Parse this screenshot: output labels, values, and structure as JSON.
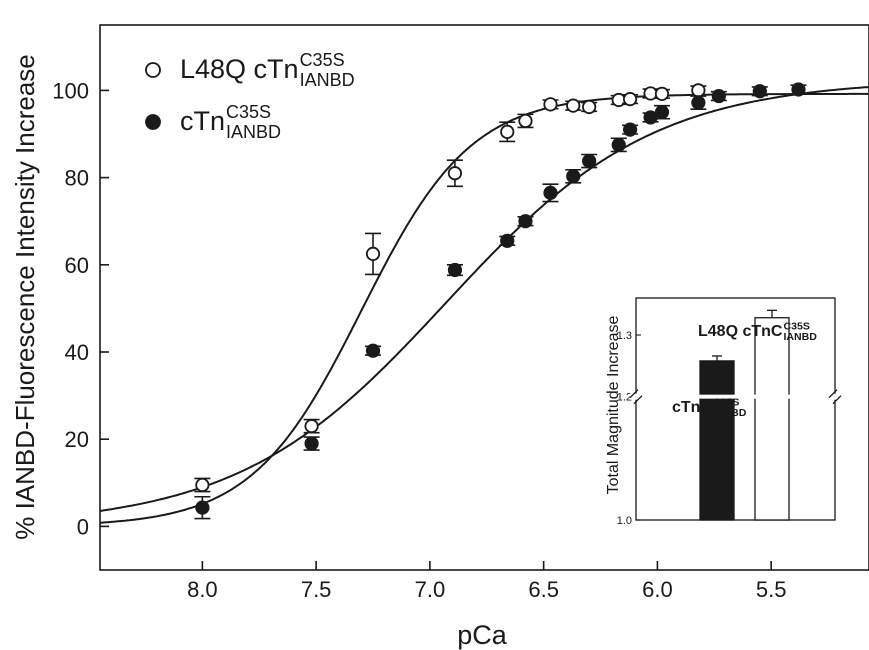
{
  "chart_data": {
    "type": "scatter",
    "xlabel": "pCa",
    "ylabel": "% IANBD-Fluorescence Intensity Increase",
    "xlim": [
      8.45,
      5.07
    ],
    "ylim": [
      -10,
      115
    ],
    "x_reversed": true,
    "x_ticks": [
      {
        "value": 8.0,
        "label": "8.0"
      },
      {
        "value": 7.5,
        "label": "7.5"
      },
      {
        "value": 7.0,
        "label": "7.0"
      },
      {
        "value": 6.5,
        "label": "6.5"
      },
      {
        "value": 6.0,
        "label": "6.0"
      },
      {
        "value": 5.5,
        "label": "5.5"
      }
    ],
    "y_ticks": [
      {
        "value": 0,
        "label": "0"
      },
      {
        "value": 20,
        "label": "20"
      },
      {
        "value": 40,
        "label": "40"
      },
      {
        "value": 60,
        "label": "60"
      },
      {
        "value": 80,
        "label": "80"
      },
      {
        "value": 100,
        "label": "100"
      }
    ],
    "legend_position": "top-left",
    "series": [
      {
        "name_main": "L48Q cTn",
        "name_sup": "C35S",
        "name_sub": "IANBD",
        "marker": "open-circle",
        "fit": {
          "top": 99.2,
          "pCa50": 7.3,
          "nH": 1.8
        },
        "x": [
          8.0,
          7.52,
          7.25,
          6.89,
          6.66,
          6.58,
          6.47,
          6.37,
          6.3,
          6.17,
          6.12,
          6.03,
          5.98,
          5.82
        ],
        "y": [
          9.5,
          23,
          62.5,
          81,
          90.5,
          93,
          96.8,
          96.5,
          96.2,
          97.8,
          98,
          99.3,
          99.2,
          100
        ],
        "err": [
          1.5,
          1.5,
          4.7,
          3.0,
          2.2,
          1.5,
          1.0,
          1.0,
          1.0,
          1.0,
          1.0,
          1.0,
          1.0,
          1.0
        ]
      },
      {
        "name_main": "cTn",
        "name_sup": "C35S",
        "name_sub": "IANBD",
        "marker": "filled-circle",
        "fit": {
          "top": 102.5,
          "pCa50": 6.93,
          "nH": 0.95
        },
        "x": [
          8.0,
          7.52,
          7.25,
          6.89,
          6.66,
          6.58,
          6.47,
          6.37,
          6.3,
          6.17,
          6.12,
          6.03,
          5.98,
          5.82,
          5.73,
          5.55,
          5.38
        ],
        "y": [
          4.3,
          19,
          40.3,
          58.8,
          65.5,
          70,
          76.5,
          80.3,
          83.8,
          87.5,
          91,
          93.8,
          95,
          97.2,
          98.7,
          99.8,
          100.2
        ],
        "err": [
          2.5,
          1.5,
          1.0,
          1.2,
          1.0,
          1.0,
          2.0,
          1.5,
          1.5,
          1.5,
          1.0,
          1.0,
          1.5,
          1.5,
          1.0,
          1.0,
          1.0
        ]
      }
    ],
    "inset": {
      "type": "bar",
      "ylabel": "Total Magnitude Increase",
      "ylim": [
        1.0,
        1.36
      ],
      "axis_break": [
        1.2,
        1.2
      ],
      "y_ticks": [
        {
          "value": 1.0,
          "label": "1.0"
        },
        {
          "value": 1.2,
          "label": "1.2"
        },
        {
          "value": 1.3,
          "label": "1.3"
        }
      ],
      "bars": [
        {
          "main": "cTnC",
          "sup": "C35S",
          "sub": "IANBD",
          "value": 1.258,
          "err": 0.008,
          "fill": "#1a1a1a"
        },
        {
          "main": "L48Q cTnC",
          "sup": "C35S",
          "sub": "IANBD",
          "value": 1.328,
          "err": 0.012,
          "fill": "#ffffff"
        }
      ]
    }
  }
}
